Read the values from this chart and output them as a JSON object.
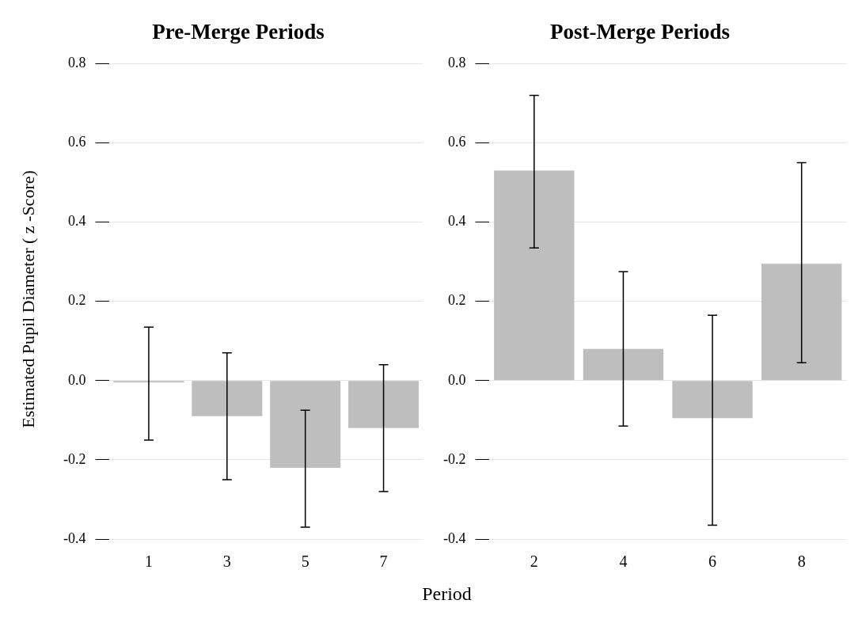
{
  "chart_data": [
    {
      "type": "bar",
      "title": "Pre-Merge Periods",
      "ylabel": "Estimated Pupil Diameter ( z -Score)",
      "xlabel": "Period",
      "categories": [
        "1",
        "3",
        "5",
        "7"
      ],
      "values": [
        -0.005,
        -0.09,
        -0.22,
        -0.12
      ],
      "errors": [
        [
          -0.15,
          0.135
        ],
        [
          -0.25,
          0.07
        ],
        [
          -0.37,
          -0.075
        ],
        [
          -0.28,
          0.04
        ]
      ],
      "color": "#bebebe",
      "ylim": [
        -0.4,
        0.8
      ],
      "yticks": [
        {
          "value": -0.4,
          "label": "-0.4"
        },
        {
          "value": -0.2,
          "label": "-0.2"
        },
        {
          "value": 0,
          "label": "0.0"
        },
        {
          "value": 0.2,
          "label": "0.2"
        },
        {
          "value": 0.4,
          "label": "0.4"
        },
        {
          "value": 0.6,
          "label": "0.6"
        },
        {
          "value": 0.8,
          "label": "0.8"
        }
      ],
      "grid": "y"
    },
    {
      "type": "bar",
      "title": "Post-Merge Periods",
      "categories": [
        "2",
        "4",
        "6",
        "8"
      ],
      "values": [
        0.53,
        0.08,
        -0.095,
        0.295
      ],
      "errors": [
        [
          0.335,
          0.72
        ],
        [
          -0.115,
          0.275
        ],
        [
          -0.365,
          0.165
        ],
        [
          0.045,
          0.55
        ]
      ],
      "color": "#bebebe",
      "ylim": [
        -0.4,
        0.8
      ],
      "yticks": [
        {
          "value": -0.4,
          "label": "-0.4"
        },
        {
          "value": -0.2,
          "label": "-0.2"
        },
        {
          "value": 0,
          "label": "0.0"
        },
        {
          "value": 0.2,
          "label": "0.2"
        },
        {
          "value": 0.4,
          "label": "0.4"
        },
        {
          "value": 0.6,
          "label": "0.6"
        },
        {
          "value": 0.8,
          "label": "0.8"
        }
      ],
      "grid": "y"
    }
  ]
}
